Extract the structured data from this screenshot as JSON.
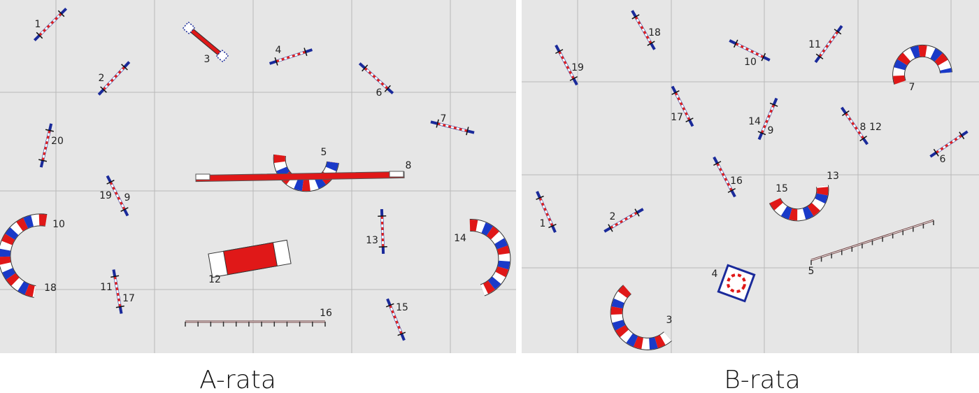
{
  "panels": [
    {
      "title": "A-rata",
      "labels": [
        "1",
        "2",
        "3",
        "4",
        "5",
        "6",
        "7",
        "8",
        "9",
        "10",
        "11",
        "12",
        "13",
        "14",
        "15",
        "16",
        "17",
        "18",
        "19",
        "20"
      ]
    },
    {
      "title": "B-rata",
      "labels": [
        "1",
        "2",
        "3",
        "4",
        "5",
        "6",
        "7",
        "8",
        "9",
        "10",
        "11",
        "12",
        "13",
        "14",
        "15",
        "16",
        "17",
        "18",
        "19"
      ]
    }
  ]
}
